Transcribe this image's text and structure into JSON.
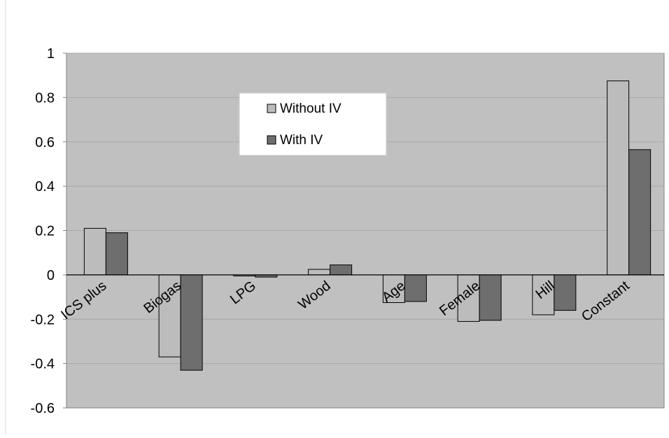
{
  "chart_data": {
    "type": "bar",
    "title": "",
    "xlabel": "",
    "ylabel": "",
    "categories": [
      "ICS plus",
      "Biogas",
      "LPG",
      "Wood",
      "Age",
      "Female",
      "Hill",
      "Constant"
    ],
    "series": [
      {
        "name": "Without IV",
        "color": "#bcbcbc",
        "values": [
          0.21,
          -0.37,
          0.0,
          0.025,
          -0.125,
          -0.21,
          -0.18,
          0.875
        ]
      },
      {
        "name": "With IV",
        "color": "#6e6e6e",
        "values": [
          0.19,
          -0.43,
          -0.01,
          0.045,
          -0.12,
          -0.205,
          -0.16,
          0.565
        ]
      }
    ],
    "ylim": [
      -0.6,
      1.0
    ],
    "yticks": [
      "-0.6",
      "-0.4",
      "-0.2",
      "0",
      "0.2",
      "0.4",
      "0.6",
      "0.8",
      "1"
    ],
    "grid": true,
    "legend_position": "top-center",
    "plot_background": "#c0c0c0"
  }
}
